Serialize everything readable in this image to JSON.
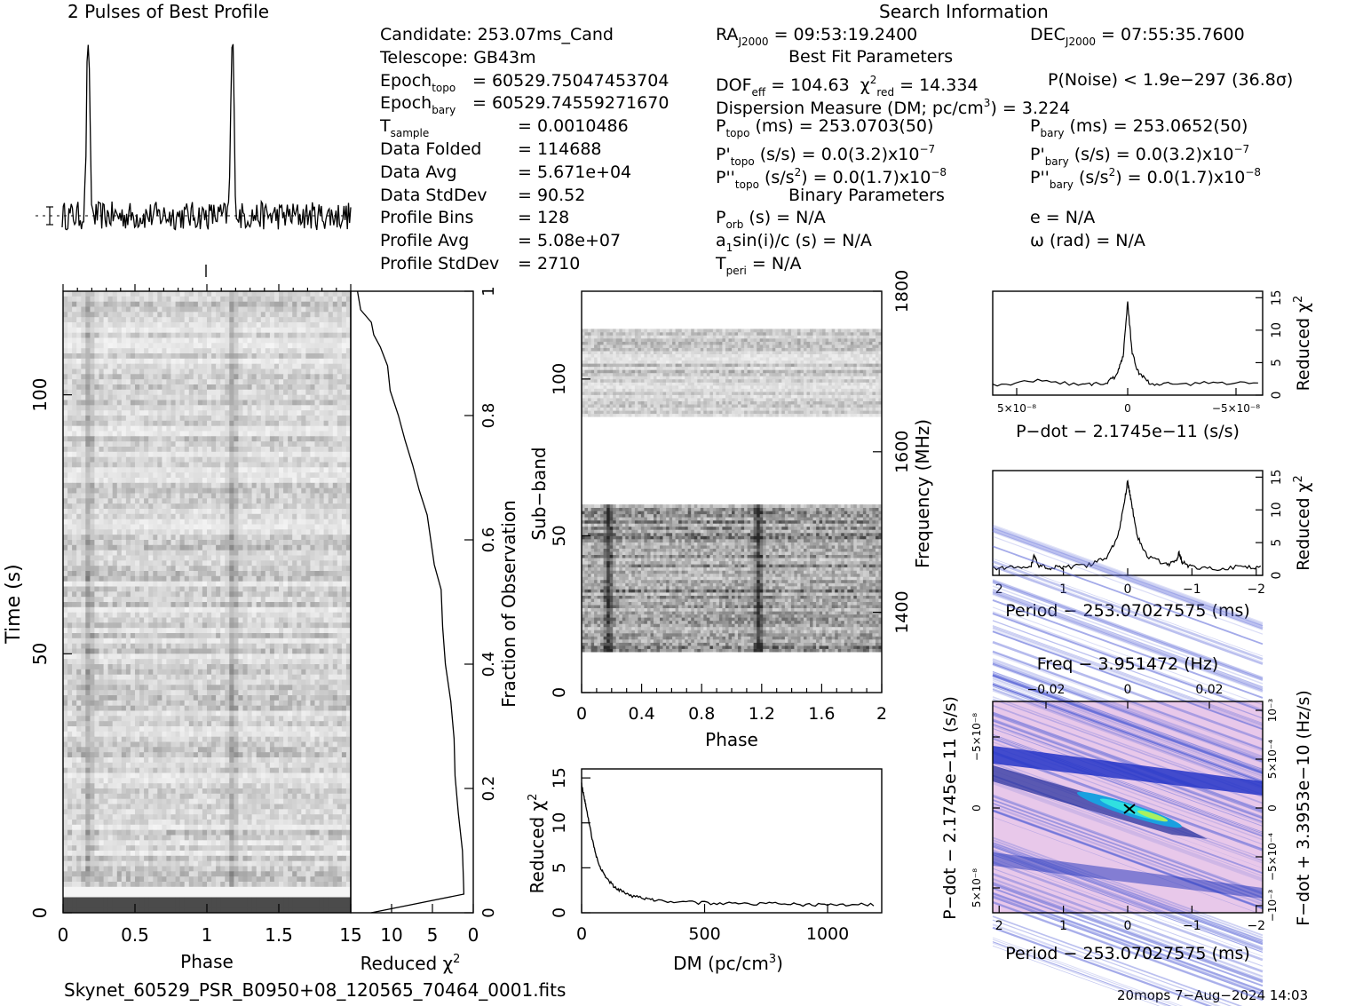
{
  "header": {
    "profile_title": "2 Pulses of Best Profile",
    "search_title": "Search Information",
    "best_fit_title": "Best Fit Parameters",
    "binary_title": "Binary Parameters"
  },
  "candidate_info": [
    {
      "label": "Candidate:  253.07ms_Cand",
      "sub": "",
      "value": ""
    },
    {
      "label": "Telescope:  GB43m",
      "sub": "",
      "value": ""
    },
    {
      "label": "Epoch",
      "sub": "topo",
      "value": "= 60529.75047453704"
    },
    {
      "label": "Epoch",
      "sub": "bary",
      "value": "= 60529.74559271670"
    },
    {
      "label": "T",
      "sub": "sample",
      "value": "=  0.0010486"
    },
    {
      "label": "Data Folded",
      "sub": "",
      "value": "=  114688"
    },
    {
      "label": "Data Avg",
      "sub": "",
      "value": "=  5.671e+04"
    },
    {
      "label": "Data StdDev",
      "sub": "",
      "value": "=  90.52"
    },
    {
      "label": "Profile Bins",
      "sub": "",
      "value": "=  128"
    },
    {
      "label": "Profile Avg",
      "sub": "",
      "value": "=  5.08e+07"
    },
    {
      "label": "Profile StdDev",
      "sub": "",
      "value": "=  2710"
    }
  ],
  "search_info": {
    "ra_label": "RA",
    "ra_sub": "J2000",
    "ra_value": "= 09:53:19.2400",
    "dec_label": "DEC",
    "dec_sub": "J2000",
    "dec_value": "= 07:55:35.7600",
    "dof_label": "DOF",
    "dof_sub": "eff",
    "dof_value": "= 104.63",
    "chi_label": "χ",
    "chi_sup": "2",
    "chi_sub": "red",
    "chi_value": "= 14.334",
    "pnoise": "P(Noise) < 1.9e−297   (36.8σ)",
    "dm_label": "Dispersion Measure (DM; pc/cm",
    "dm_sup": "3",
    "dm_value": ") = 3.224",
    "ptopo_label": "P",
    "ptopo_sub": "topo",
    "ptopo_value": " (ms) =  253.0703(50)",
    "pbary_label": "P",
    "pbary_sub": "bary",
    "pbary_value": " (ms) =  253.0652(50)",
    "pdtopo_label": "P'",
    "pdtopo_sub": "topo",
    "pdtopo_value": " (s/s) = 0.0(3.2)x10",
    "pdtopo_exp": "−7",
    "pdbary_label": "P'",
    "pdbary_sub": "bary",
    "pdbary_value": " (s/s) = 0.0(3.2)x10",
    "pdbary_exp": "−7",
    "pddtopo_label": "P''",
    "pddtopo_sub": "topo",
    "pddtopo_value": " (s/s",
    "pddtopo_sup": "2",
    "pddtopo_value2": ") = 0.0(1.7)x10",
    "pddtopo_exp": "−8",
    "pddbary_label": "P''",
    "pddbary_sub": "bary",
    "pddbary_value": " (s/s",
    "pddbary_sup": "2",
    "pddbary_value2": ") = 0.0(1.7)x10",
    "pddbary_exp": "−8",
    "porb_label": "P",
    "porb_sub": "orb",
    "porb_value": " (s) = N/A",
    "e_text": "e = N/A",
    "a1_label": "a",
    "a1_sub": "1",
    "a1_value": "sin(i)/c (s) = N/A",
    "omega_text": "ω (rad) = N/A",
    "tperi_label": "T",
    "tperi_sub": "peri",
    "tperi_value": " = N/A"
  },
  "footer": {
    "filename": "Skynet_60529_PSR_B0950+08_120565_70464_0001.fits",
    "stamp": "20mops  7−Aug−2024 14:03"
  },
  "colors": {
    "ink": "#000000",
    "pmap_bg": "#e8c8ea",
    "pmap_band": "#2535c8",
    "pmap_peak": "#30e0e0"
  },
  "chart_data": [
    {
      "type": "line",
      "name": "profile",
      "title": "2 Pulses of Best Profile",
      "x_range": [
        0,
        2
      ],
      "pulse_phases": [
        0.18,
        1.18
      ],
      "peak_relative": 1.0,
      "noise_relative": 0.08
    },
    {
      "type": "heatmap",
      "name": "time-phase",
      "xlabel": "Phase",
      "ylabel": "Time (s)",
      "xlim": [
        0,
        2
      ],
      "ylim": [
        0,
        120
      ],
      "x_ticks": [
        "0",
        "0.5",
        "1",
        "1.5"
      ],
      "y_ticks": [
        "0",
        "50",
        "100"
      ],
      "pulse_phases": [
        0.18,
        1.18
      ]
    },
    {
      "type": "line",
      "name": "reduced-chi2-vs-time",
      "xlabel": "Reduced χ",
      "xlabel_sup": "2",
      "ylabel": "Fraction of Observation",
      "xlim": [
        15,
        0
      ],
      "ylim": [
        0,
        1
      ],
      "x_ticks": [
        "15",
        "10",
        "5",
        "0"
      ],
      "y_ticks": [
        "0",
        "0.2",
        "0.4",
        "0.6",
        "0.8",
        "1"
      ],
      "x": [
        1.1,
        1.3,
        1.6,
        2.0,
        2.4,
        2.8,
        3.2,
        3.6,
        4.0,
        4.6,
        5.2,
        5.8,
        6.6,
        7.6,
        8.6,
        9.4,
        10.0,
        10.6,
        11.4,
        12.2,
        12.6,
        1.0,
        13.6,
        14.4
      ],
      "y": [
        0.05,
        0.1,
        0.16,
        0.22,
        0.28,
        0.34,
        0.4,
        0.46,
        0.52,
        0.56,
        0.6,
        0.64,
        0.68,
        0.72,
        0.76,
        0.8,
        0.84,
        0.88,
        0.91,
        0.93,
        0.95,
        0.03,
        0.97,
        1.0
      ]
    },
    {
      "type": "heatmap",
      "name": "subband-phase",
      "xlabel": "Phase",
      "ylabel": "Sub−band",
      "y2label": "Frequency (MHz)",
      "xlim": [
        0,
        2
      ],
      "ylim": [
        0,
        128
      ],
      "x_ticks": [
        "0",
        "0.4",
        "0.8",
        "1.2",
        "1.6",
        "2"
      ],
      "y_ticks": [
        "0",
        "50",
        "100"
      ],
      "y2_ticks": [
        "1400",
        "1600",
        "1800"
      ],
      "bands": [
        [
          13,
          60
        ],
        [
          88,
          116
        ]
      ],
      "pulse_phases": [
        0.18,
        1.18
      ]
    },
    {
      "type": "line",
      "name": "dm-curve",
      "xlabel": "DM (pc/cm",
      "xlabel_sup": "3",
      "ylabel": "Reduced χ",
      "ylabel_sup": "2",
      "xlim": [
        0,
        1220
      ],
      "ylim": [
        0,
        16
      ],
      "x_ticks": [
        "0",
        "500",
        "1000"
      ],
      "y_ticks": [
        "0",
        "5",
        "10",
        "15"
      ],
      "x": [
        0,
        10,
        20,
        40,
        60,
        80,
        100,
        130,
        160,
        200,
        250,
        300,
        400,
        500,
        600,
        700,
        800,
        900,
        1000,
        1100,
        1200
      ],
      "y": [
        14.3,
        13.0,
        11.5,
        8.6,
        6.3,
        4.8,
        3.9,
        3.0,
        2.4,
        1.9,
        1.6,
        1.4,
        1.2,
        1.1,
        1.0,
        1.0,
        1.0,
        0.9,
        0.9,
        0.9,
        0.9
      ]
    },
    {
      "type": "line",
      "name": "pdot-curve",
      "xlabel": "P−dot − 2.1745e−11 (s/s)",
      "ylabel": "Reduced χ",
      "ylabel_sup": "2",
      "xlim": [
        6e-08,
        -6e-08
      ],
      "ylim": [
        0,
        16
      ],
      "x_ticks": [
        "5×10⁻⁸",
        "0",
        "−5×10⁻⁸"
      ],
      "y_ticks": [
        "0",
        "5",
        "10",
        "15"
      ],
      "x": [
        6e-08,
        4e-08,
        2e-08,
        1e-08,
        5e-09,
        2e-09,
        0,
        -2e-09,
        -5e-09,
        -1e-08,
        -2e-08,
        -4e-08,
        -6e-08
      ],
      "y": [
        1.5,
        2.2,
        1.6,
        1.8,
        3.0,
        6.0,
        14.3,
        6.5,
        3.2,
        1.9,
        1.6,
        2.0,
        1.7
      ]
    },
    {
      "type": "line",
      "name": "period-curve",
      "xlabel": "Period − 253.07027575 (ms)",
      "ylabel": "Reduced χ",
      "ylabel_sup": "2",
      "xlim": [
        2.1,
        -2.1
      ],
      "ylim": [
        0,
        16
      ],
      "x_ticks": [
        "2",
        "1",
        "0",
        "−1",
        "−2"
      ],
      "y_ticks": [
        "0",
        "5",
        "10",
        "15"
      ],
      "x": [
        2.1,
        1.8,
        1.5,
        1.45,
        1.4,
        1.2,
        1.0,
        0.6,
        0.3,
        0.15,
        0.05,
        0,
        -0.05,
        -0.15,
        -0.3,
        -0.6,
        -0.75,
        -0.8,
        -0.85,
        -1.0,
        -1.4,
        -1.8,
        -2.1
      ],
      "y": [
        1.2,
        1.1,
        1.6,
        3.2,
        1.6,
        1.2,
        1.2,
        1.6,
        3.0,
        6.0,
        11.5,
        14.3,
        11.5,
        6.0,
        3.0,
        1.6,
        2.0,
        3.4,
        2.0,
        1.2,
        1.0,
        1.3,
        1.2
      ]
    },
    {
      "type": "heatmap",
      "name": "period-pdot-plane",
      "title": "Freq − 3.951472 (Hz)",
      "xlabel": "Period − 253.07027575 (ms)",
      "ylabel": "P−dot − 2.1745e−11 (s/s)",
      "y2label": "F−dot + 3.3953e−10 (Hz/s)",
      "xlim": [
        2.1,
        -2.1
      ],
      "x_ticks": [
        "2",
        "1",
        "0",
        "−1",
        "−2"
      ],
      "top_ticks": [
        "−0.02",
        "0",
        "0.02"
      ],
      "y_ticks": [
        "−5×10⁻⁸",
        "0",
        "5×10⁻⁸"
      ],
      "y2_ticks": [
        "10⁻³",
        "5×10⁻⁴",
        "0",
        "−5×10⁻⁴",
        "−10⁻³"
      ],
      "peak": [
        0,
        0
      ]
    }
  ]
}
